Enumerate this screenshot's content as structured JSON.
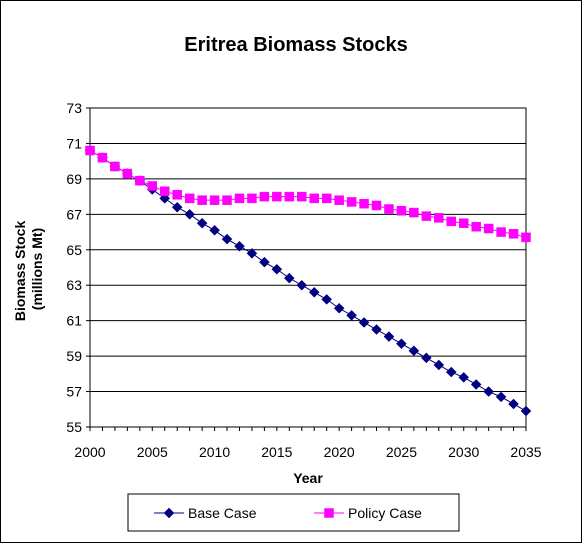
{
  "chart_data": {
    "type": "line",
    "title": "Eritrea Biomass Stocks",
    "xlabel": "Year",
    "ylabel": [
      "Biomass Stock",
      "(millions Mt)"
    ],
    "xlim": [
      2000,
      2035
    ],
    "ylim": [
      55,
      73
    ],
    "x_ticks": [
      "2000",
      "2005",
      "2010",
      "2015",
      "2020",
      "2025",
      "2030",
      "2035"
    ],
    "y_ticks": [
      "55",
      "57",
      "59",
      "61",
      "63",
      "65",
      "67",
      "69",
      "71",
      "73"
    ],
    "grid": "horizontal",
    "legend_position": "bottom",
    "x": [
      2000,
      2001,
      2002,
      2003,
      2004,
      2005,
      2006,
      2007,
      2008,
      2009,
      2010,
      2011,
      2012,
      2013,
      2014,
      2015,
      2016,
      2017,
      2018,
      2019,
      2020,
      2021,
      2022,
      2023,
      2024,
      2025,
      2026,
      2027,
      2028,
      2029,
      2030,
      2031,
      2032,
      2033,
      2034,
      2035
    ],
    "series": [
      {
        "name": "Base Case",
        "color": "#000080",
        "marker": "diamond",
        "values": [
          70.6,
          70.2,
          69.7,
          69.3,
          68.9,
          68.4,
          67.9,
          67.4,
          67.0,
          66.5,
          66.1,
          65.6,
          65.2,
          64.8,
          64.3,
          63.9,
          63.4,
          63.0,
          62.6,
          62.2,
          61.7,
          61.3,
          60.9,
          60.5,
          60.1,
          59.7,
          59.3,
          58.9,
          58.5,
          58.1,
          57.8,
          57.4,
          57.0,
          56.7,
          56.3,
          55.9
        ]
      },
      {
        "name": "Policy Case",
        "color": "#FF00FF",
        "marker": "square",
        "values": [
          70.6,
          70.2,
          69.7,
          69.3,
          68.9,
          68.6,
          68.3,
          68.1,
          67.9,
          67.8,
          67.8,
          67.8,
          67.9,
          67.9,
          68.0,
          68.0,
          68.0,
          68.0,
          67.9,
          67.9,
          67.8,
          67.7,
          67.6,
          67.5,
          67.3,
          67.2,
          67.1,
          66.9,
          66.8,
          66.6,
          66.5,
          66.3,
          66.2,
          66.0,
          65.9,
          65.7
        ]
      }
    ]
  }
}
